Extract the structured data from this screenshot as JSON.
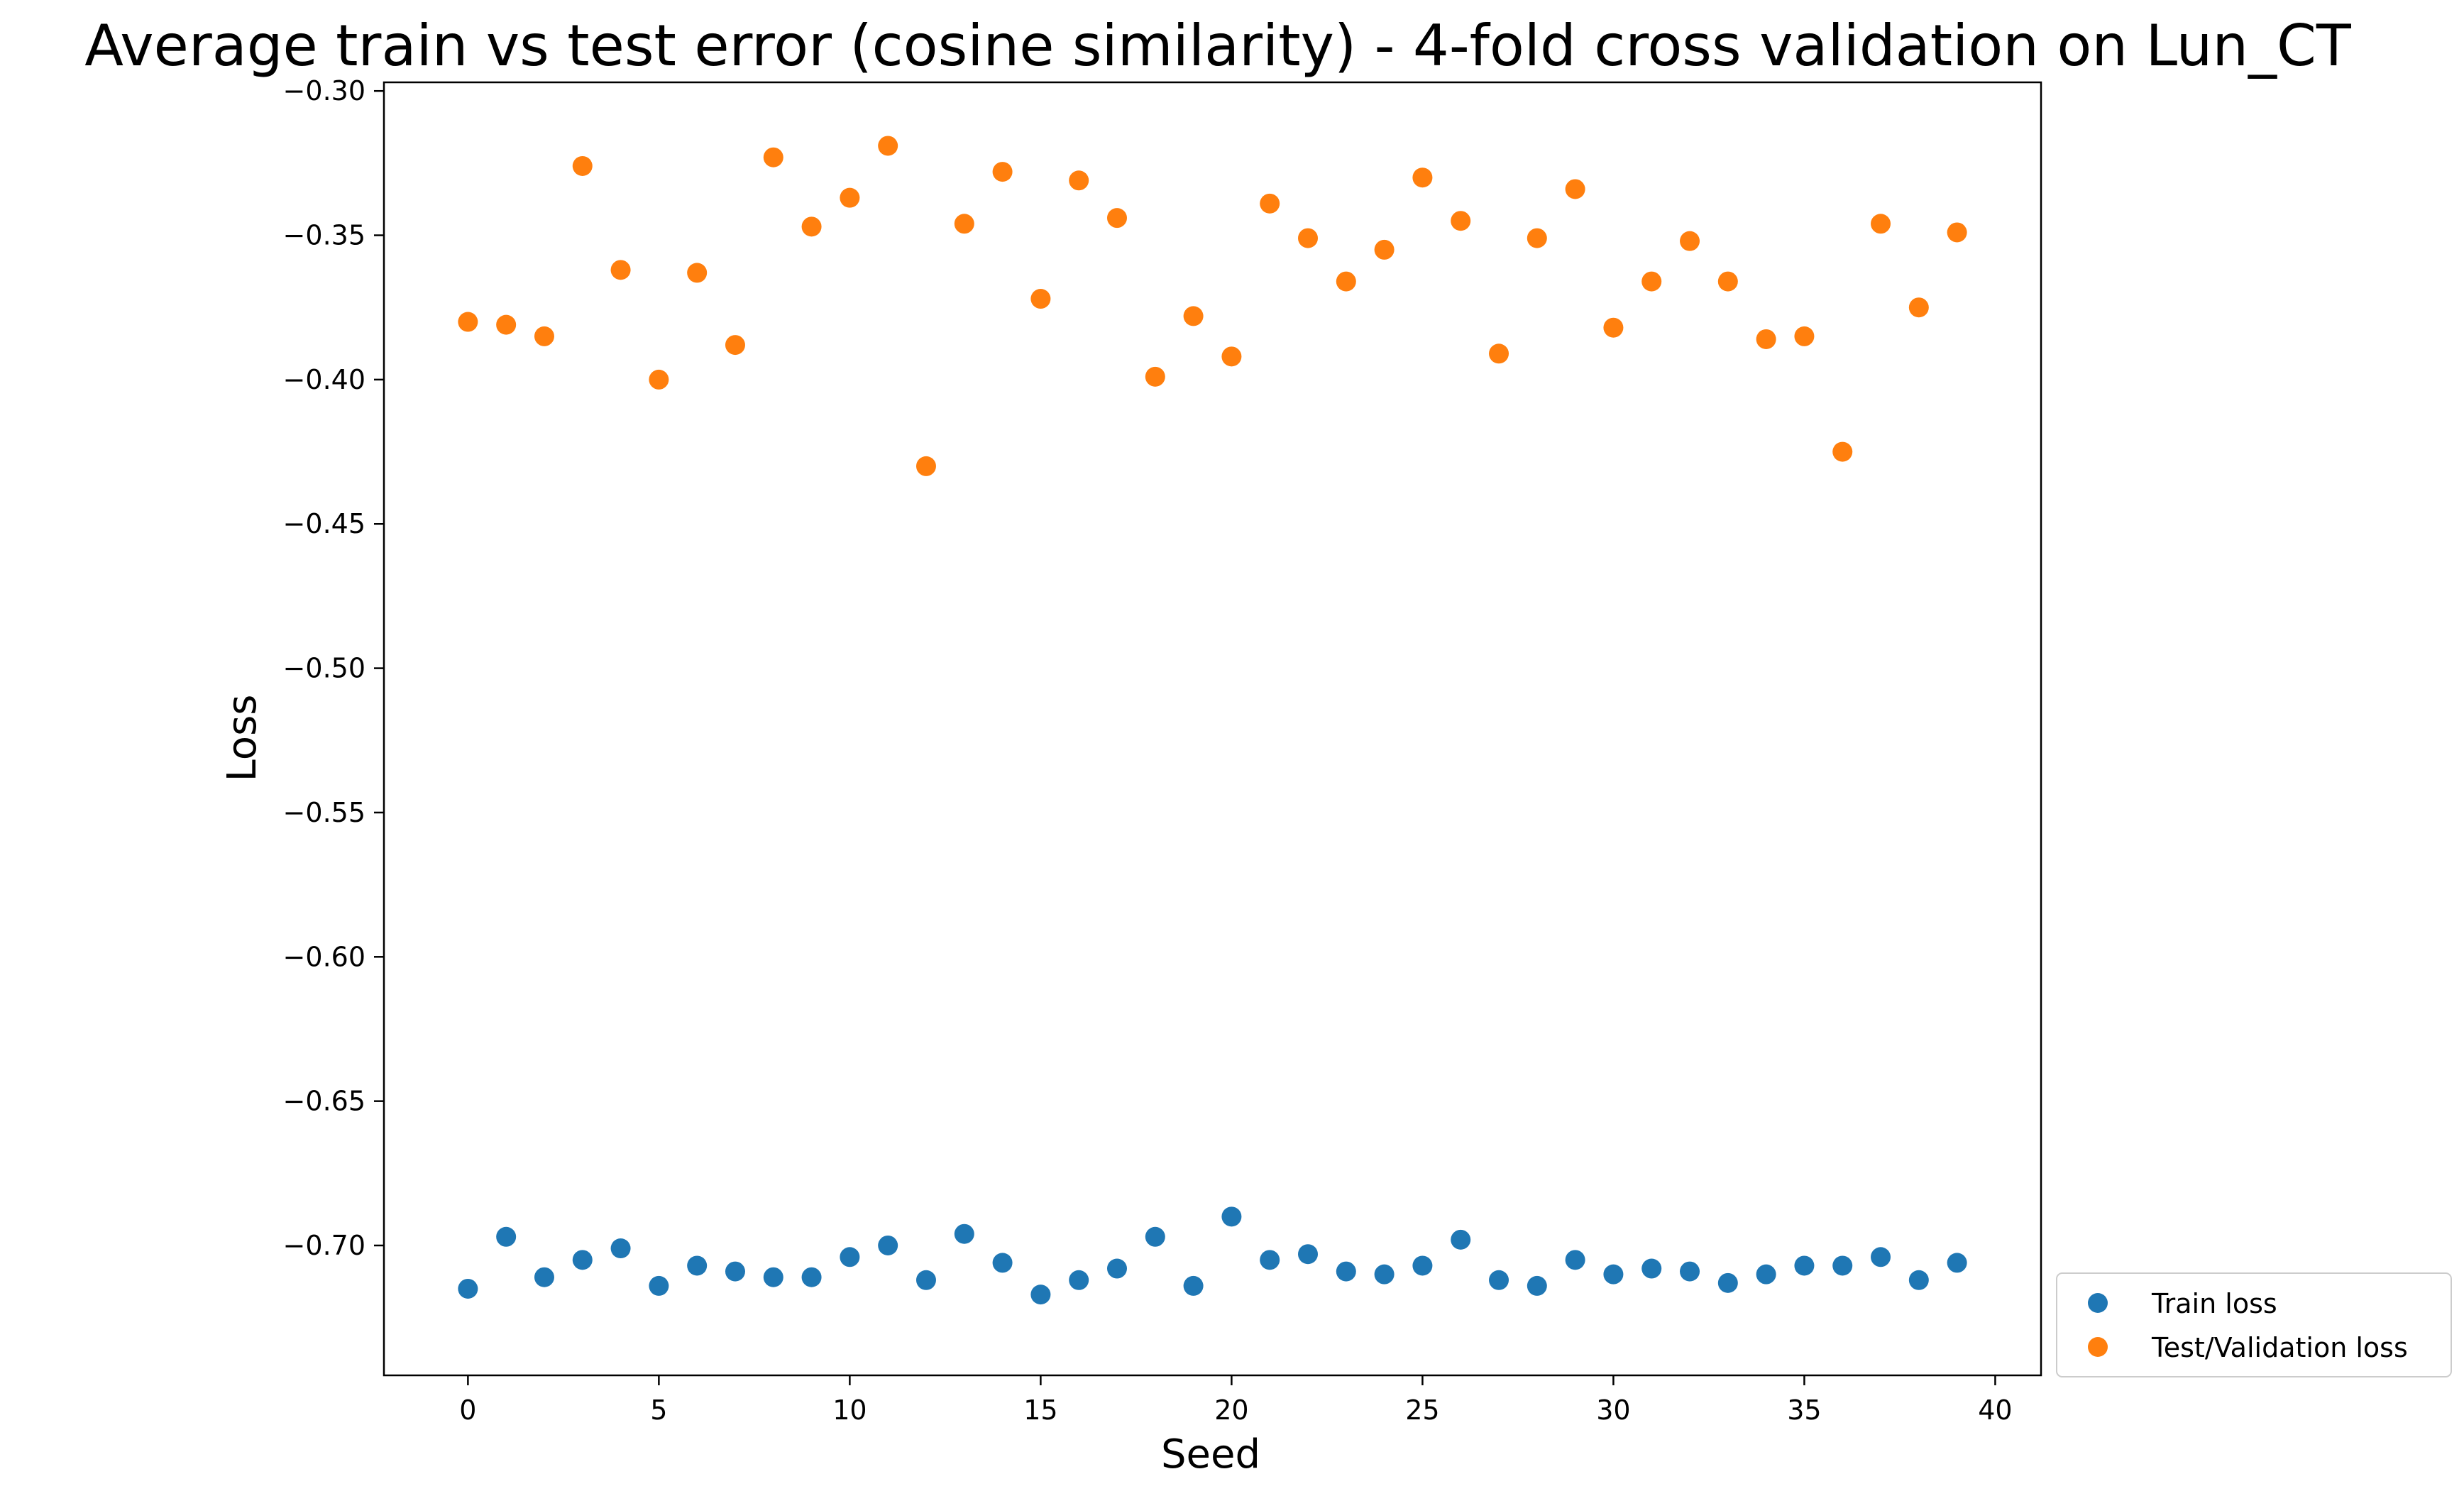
{
  "chart_data": {
    "type": "scatter",
    "title": "Average train vs test error (cosine similarity) - 4-fold cross validation on Lun_CT",
    "xlabel": "Seed",
    "ylabel": "Loss",
    "xlim": [
      -2.2,
      41.2
    ],
    "ylim": [
      -0.745,
      -0.297
    ],
    "xticks": [
      0,
      5,
      10,
      15,
      20,
      25,
      30,
      35,
      40
    ],
    "yticks": [
      -0.7,
      -0.65,
      -0.6,
      -0.55,
      -0.5,
      -0.45,
      -0.4,
      -0.35,
      -0.3
    ],
    "xtick_labels": [
      "0",
      "5",
      "10",
      "15",
      "20",
      "25",
      "30",
      "35",
      "40"
    ],
    "ytick_labels": [
      "−0.70",
      "−0.65",
      "−0.60",
      "−0.55",
      "−0.50",
      "−0.45",
      "−0.40",
      "−0.35",
      "−0.30"
    ],
    "grid": false,
    "legend_position": "outside-bottom-right",
    "series": [
      {
        "name": "Train loss",
        "color": "#1f77b4",
        "x": [
          0,
          1,
          2,
          3,
          4,
          5,
          6,
          7,
          8,
          9,
          10,
          11,
          12,
          13,
          14,
          15,
          16,
          17,
          18,
          19,
          20,
          21,
          22,
          23,
          24,
          25,
          26,
          27,
          28,
          29,
          30,
          31,
          32,
          33,
          34,
          35,
          36,
          37,
          38,
          39
        ],
        "y": [
          -0.715,
          -0.697,
          -0.711,
          -0.705,
          -0.701,
          -0.714,
          -0.707,
          -0.709,
          -0.711,
          -0.711,
          -0.704,
          -0.7,
          -0.712,
          -0.696,
          -0.706,
          -0.717,
          -0.712,
          -0.708,
          -0.697,
          -0.714,
          -0.69,
          -0.705,
          -0.703,
          -0.709,
          -0.71,
          -0.707,
          -0.698,
          -0.712,
          -0.714,
          -0.705,
          -0.71,
          -0.708,
          -0.709,
          -0.713,
          -0.71,
          -0.707,
          -0.707,
          -0.704,
          -0.712,
          -0.706
        ]
      },
      {
        "name": "Test/Validation loss",
        "color": "#ff7f0e",
        "x": [
          0,
          1,
          2,
          3,
          4,
          5,
          6,
          7,
          8,
          9,
          10,
          11,
          12,
          13,
          14,
          15,
          16,
          17,
          18,
          19,
          20,
          21,
          22,
          23,
          24,
          25,
          26,
          27,
          28,
          29,
          30,
          31,
          32,
          33,
          34,
          35,
          36,
          37,
          38,
          39
        ],
        "y": [
          -0.38,
          -0.381,
          -0.385,
          -0.326,
          -0.362,
          -0.4,
          -0.363,
          -0.388,
          -0.323,
          -0.347,
          -0.337,
          -0.319,
          -0.43,
          -0.346,
          -0.328,
          -0.372,
          -0.331,
          -0.344,
          -0.399,
          -0.378,
          -0.392,
          -0.339,
          -0.351,
          -0.366,
          -0.355,
          -0.33,
          -0.345,
          -0.391,
          -0.351,
          -0.334,
          -0.382,
          -0.366,
          -0.352,
          -0.366,
          -0.386,
          -0.385,
          -0.425,
          -0.346,
          -0.375,
          -0.349
        ]
      }
    ]
  }
}
